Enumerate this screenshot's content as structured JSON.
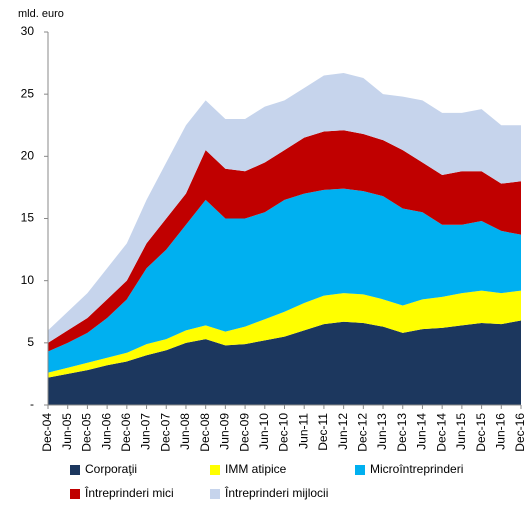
{
  "chart_data": {
    "type": "stacked_area",
    "y_label": "mld. euro",
    "categories": [
      "Dec-04",
      "Jun-05",
      "Dec-05",
      "Jun-06",
      "Dec-06",
      "Jun-07",
      "Dec-07",
      "Jun-08",
      "Dec-08",
      "Jun-09",
      "Dec-09",
      "Jun-10",
      "Dec-10",
      "Jun-11",
      "Dec-11",
      "Jun-12",
      "Dec-12",
      "Jun-13",
      "Dec-13",
      "Jun-14",
      "Dec-14",
      "Jun-15",
      "Dec-15",
      "Jun-16",
      "Dec-16"
    ],
    "series": [
      {
        "name": "Corporaţii",
        "color": "#1c375e",
        "values": [
          2.2,
          2.5,
          2.8,
          3.2,
          3.5,
          4.0,
          4.4,
          5.0,
          5.3,
          4.8,
          4.9,
          5.2,
          5.5,
          6.0,
          6.5,
          6.7,
          6.6,
          6.3,
          5.8,
          6.1,
          6.2,
          6.4,
          6.6,
          6.5,
          6.8
        ]
      },
      {
        "name": "IMM atipice",
        "color": "#ffff00",
        "values": [
          0.4,
          0.5,
          0.6,
          0.6,
          0.7,
          0.9,
          0.9,
          1.0,
          1.1,
          1.1,
          1.4,
          1.7,
          2.0,
          2.2,
          2.3,
          2.3,
          2.3,
          2.2,
          2.2,
          2.4,
          2.5,
          2.6,
          2.6,
          2.5,
          2.4
        ]
      },
      {
        "name": "Microîntreprinderi",
        "color": "#00b0f0",
        "values": [
          1.7,
          2.0,
          2.4,
          3.2,
          4.3,
          6.1,
          7.2,
          8.5,
          10.1,
          9.1,
          8.7,
          8.6,
          9.0,
          8.8,
          8.5,
          8.4,
          8.3,
          8.3,
          7.8,
          7.0,
          5.8,
          5.5,
          5.6,
          5.0,
          4.5
        ]
      },
      {
        "name": "Întreprinderi mici",
        "color": "#c00000",
        "values": [
          0.7,
          1.0,
          1.2,
          1.5,
          1.5,
          2.0,
          2.5,
          2.5,
          4.0,
          4.0,
          3.8,
          4.0,
          4.0,
          4.5,
          4.7,
          4.7,
          4.6,
          4.5,
          4.7,
          4.0,
          4.0,
          4.3,
          4.0,
          3.8,
          4.3
        ]
      },
      {
        "name": "Întreprinderi mijlocii",
        "color": "#c6d4ec",
        "values": [
          1.0,
          1.5,
          2.0,
          2.5,
          3.0,
          3.5,
          4.5,
          5.5,
          4.0,
          4.0,
          4.2,
          4.5,
          4.0,
          4.0,
          4.5,
          4.6,
          4.5,
          3.7,
          4.3,
          5.0,
          5.0,
          4.7,
          5.0,
          4.7,
          4.5
        ]
      }
    ],
    "ylim": [
      0,
      30
    ],
    "yticks": [
      {
        "value": 0,
        "label": "-"
      },
      5,
      10,
      15,
      20,
      25,
      30
    ]
  }
}
